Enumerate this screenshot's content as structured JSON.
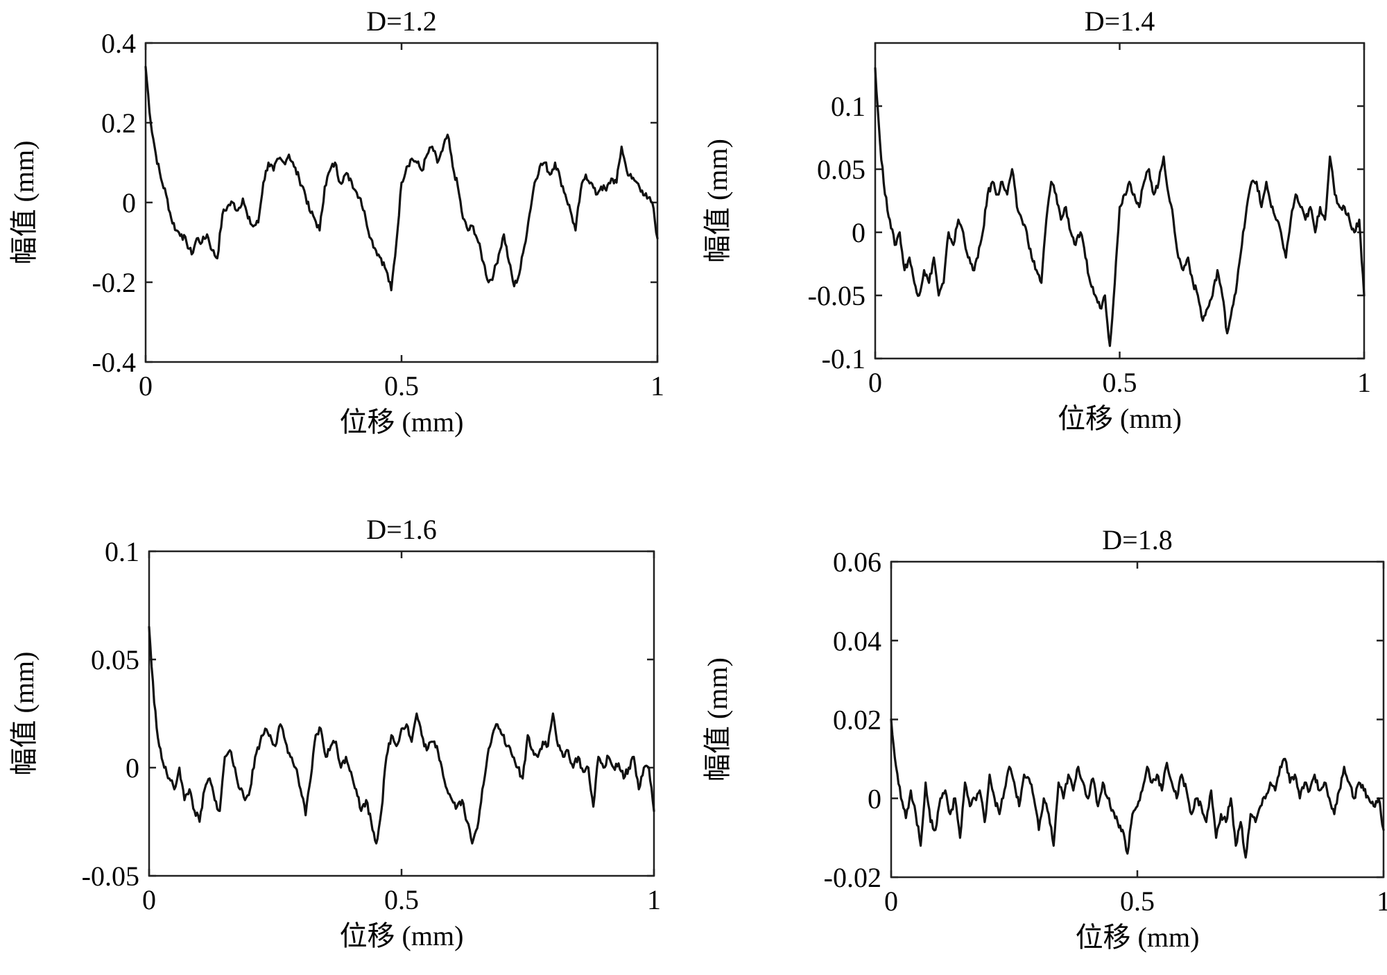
{
  "chart_data": [
    {
      "type": "line",
      "title": "D=1.2",
      "xlabel": "位移 (mm)",
      "ylabel": "幅值 (mm)",
      "xlim": [
        0,
        1
      ],
      "ylim": [
        -0.4,
        0.4
      ],
      "x_ticks": [
        "0",
        "0.5",
        "1"
      ],
      "y_ticks": [
        "0.4",
        "0.2",
        "0",
        "-0.2",
        "-0.4"
      ],
      "grid": false,
      "series": [
        {
          "x": [
            0,
            0.01,
            0.02,
            0.03,
            0.04,
            0.05,
            0.06,
            0.07,
            0.08,
            0.09,
            0.1,
            0.11,
            0.12,
            0.13,
            0.14,
            0.15,
            0.16,
            0.17,
            0.18,
            0.19,
            0.2,
            0.21,
            0.22,
            0.23,
            0.24,
            0.25,
            0.26,
            0.27,
            0.28,
            0.29,
            0.3,
            0.31,
            0.32,
            0.33,
            0.34,
            0.35,
            0.36,
            0.37,
            0.38,
            0.39,
            0.4,
            0.41,
            0.42,
            0.43,
            0.44,
            0.45,
            0.46,
            0.47,
            0.48,
            0.49,
            0.5,
            0.51,
            0.52,
            0.53,
            0.54,
            0.55,
            0.56,
            0.57,
            0.58,
            0.59,
            0.6,
            0.61,
            0.62,
            0.63,
            0.64,
            0.65,
            0.66,
            0.67,
            0.68,
            0.69,
            0.7,
            0.71,
            0.72,
            0.73,
            0.74,
            0.75,
            0.76,
            0.77,
            0.78,
            0.79,
            0.8,
            0.81,
            0.82,
            0.83,
            0.84,
            0.85,
            0.86,
            0.87,
            0.88,
            0.89,
            0.9,
            0.91,
            0.92,
            0.93,
            0.94,
            0.95,
            0.96,
            0.97,
            0.98,
            0.99,
            1.0
          ],
          "values": [
            0.34,
            0.2,
            0.12,
            0.06,
            0.02,
            -0.04,
            -0.07,
            -0.08,
            -0.1,
            -0.13,
            -0.09,
            -0.1,
            -0.08,
            -0.12,
            -0.14,
            -0.03,
            -0.01,
            0.0,
            -0.02,
            0.01,
            -0.04,
            -0.06,
            -0.05,
            0.05,
            0.1,
            0.08,
            0.11,
            0.1,
            0.12,
            0.09,
            0.06,
            0.03,
            -0.02,
            -0.04,
            -0.07,
            0.04,
            0.08,
            0.1,
            0.05,
            0.07,
            0.06,
            0.03,
            0.01,
            -0.04,
            -0.09,
            -0.12,
            -0.14,
            -0.17,
            -0.22,
            -0.1,
            0.05,
            0.09,
            0.11,
            0.1,
            0.08,
            0.12,
            0.14,
            0.1,
            0.13,
            0.17,
            0.09,
            0.04,
            -0.04,
            -0.07,
            -0.06,
            -0.1,
            -0.15,
            -0.2,
            -0.18,
            -0.13,
            -0.08,
            -0.15,
            -0.21,
            -0.18,
            -0.11,
            -0.03,
            0.05,
            0.09,
            0.1,
            0.07,
            0.1,
            0.06,
            0.02,
            -0.02,
            -0.07,
            0.03,
            0.07,
            0.05,
            0.02,
            0.04,
            0.03,
            0.06,
            0.05,
            0.14,
            0.08,
            0.06,
            0.05,
            0.03,
            0.01,
            0.0,
            -0.09
          ]
        }
      ]
    },
    {
      "type": "line",
      "title": "D=1.4",
      "xlabel": "位移 (mm)",
      "ylabel": "幅值 (mm)",
      "xlim": [
        0,
        1
      ],
      "ylim": [
        -0.1,
        0.15
      ],
      "x_ticks": [
        "0",
        "0.5",
        "1"
      ],
      "y_ticks": [
        "0.1",
        "0.05",
        "0",
        "-0.05",
        "-0.1"
      ],
      "y_tick_values": [
        0.1,
        0.05,
        0,
        -0.05,
        -0.1
      ],
      "grid": false,
      "series": [
        {
          "x": [
            0,
            0.01,
            0.02,
            0.03,
            0.04,
            0.05,
            0.06,
            0.07,
            0.08,
            0.09,
            0.1,
            0.11,
            0.12,
            0.13,
            0.14,
            0.15,
            0.16,
            0.17,
            0.18,
            0.19,
            0.2,
            0.21,
            0.22,
            0.23,
            0.24,
            0.25,
            0.26,
            0.27,
            0.28,
            0.29,
            0.3,
            0.31,
            0.32,
            0.33,
            0.34,
            0.35,
            0.36,
            0.37,
            0.38,
            0.39,
            0.4,
            0.41,
            0.42,
            0.43,
            0.44,
            0.45,
            0.46,
            0.47,
            0.48,
            0.49,
            0.5,
            0.51,
            0.52,
            0.53,
            0.54,
            0.55,
            0.56,
            0.57,
            0.58,
            0.59,
            0.6,
            0.61,
            0.62,
            0.63,
            0.64,
            0.65,
            0.66,
            0.67,
            0.68,
            0.69,
            0.7,
            0.71,
            0.72,
            0.73,
            0.74,
            0.75,
            0.76,
            0.77,
            0.78,
            0.79,
            0.8,
            0.81,
            0.82,
            0.83,
            0.84,
            0.85,
            0.86,
            0.87,
            0.88,
            0.89,
            0.9,
            0.91,
            0.92,
            0.93,
            0.94,
            0.95,
            0.96,
            0.97,
            0.98,
            0.99,
            1.0
          ],
          "values": [
            0.13,
            0.07,
            0.03,
            0.01,
            -0.01,
            0.0,
            -0.03,
            -0.02,
            -0.04,
            -0.05,
            -0.03,
            -0.04,
            -0.02,
            -0.05,
            -0.04,
            0.0,
            -0.01,
            0.01,
            0.0,
            -0.02,
            -0.03,
            -0.02,
            0.0,
            0.03,
            0.04,
            0.03,
            0.04,
            0.03,
            0.05,
            0.02,
            0.01,
            0.0,
            -0.02,
            -0.03,
            -0.04,
            0.01,
            0.04,
            0.03,
            0.01,
            0.02,
            0.0,
            -0.01,
            0.0,
            -0.02,
            -0.04,
            -0.05,
            -0.06,
            -0.05,
            -0.09,
            -0.04,
            0.02,
            0.03,
            0.04,
            0.03,
            0.02,
            0.04,
            0.05,
            0.03,
            0.04,
            0.06,
            0.03,
            0.01,
            -0.02,
            -0.03,
            -0.02,
            -0.04,
            -0.05,
            -0.07,
            -0.06,
            -0.05,
            -0.03,
            -0.05,
            -0.08,
            -0.06,
            -0.04,
            -0.01,
            0.02,
            0.04,
            0.04,
            0.02,
            0.04,
            0.02,
            0.01,
            0.0,
            -0.02,
            0.01,
            0.03,
            0.02,
            0.01,
            0.02,
            0.0,
            0.02,
            0.01,
            0.06,
            0.03,
            0.02,
            0.02,
            0.01,
            0.0,
            0.01,
            -0.05
          ]
        }
      ]
    },
    {
      "type": "line",
      "title": "D=1.6",
      "xlabel": "位移 (mm)",
      "ylabel": "幅值 (mm)",
      "xlim": [
        0,
        1
      ],
      "ylim": [
        -0.05,
        0.1
      ],
      "x_ticks": [
        "0",
        "0.5",
        "1"
      ],
      "y_ticks": [
        "0.1",
        "0.05",
        "0",
        "-0.05"
      ],
      "grid": false,
      "series": [
        {
          "x": [
            0,
            0.01,
            0.02,
            0.03,
            0.04,
            0.05,
            0.06,
            0.07,
            0.08,
            0.09,
            0.1,
            0.11,
            0.12,
            0.13,
            0.14,
            0.15,
            0.16,
            0.17,
            0.18,
            0.19,
            0.2,
            0.21,
            0.22,
            0.23,
            0.24,
            0.25,
            0.26,
            0.27,
            0.28,
            0.29,
            0.3,
            0.31,
            0.32,
            0.33,
            0.34,
            0.35,
            0.36,
            0.37,
            0.38,
            0.39,
            0.4,
            0.41,
            0.42,
            0.43,
            0.44,
            0.45,
            0.46,
            0.47,
            0.48,
            0.49,
            0.5,
            0.51,
            0.52,
            0.53,
            0.54,
            0.55,
            0.56,
            0.57,
            0.58,
            0.59,
            0.6,
            0.61,
            0.62,
            0.63,
            0.64,
            0.65,
            0.66,
            0.67,
            0.68,
            0.69,
            0.7,
            0.71,
            0.72,
            0.73,
            0.74,
            0.75,
            0.76,
            0.77,
            0.78,
            0.79,
            0.8,
            0.81,
            0.82,
            0.83,
            0.84,
            0.85,
            0.86,
            0.87,
            0.88,
            0.89,
            0.9,
            0.91,
            0.92,
            0.93,
            0.94,
            0.95,
            0.96,
            0.97,
            0.98,
            0.99,
            1.0
          ],
          "values": [
            0.065,
            0.03,
            0.01,
            0.0,
            -0.005,
            -0.01,
            0.0,
            -0.015,
            -0.01,
            -0.02,
            -0.025,
            -0.01,
            -0.005,
            -0.015,
            -0.02,
            0.005,
            0.008,
            0.0,
            -0.01,
            -0.015,
            -0.01,
            0.005,
            0.012,
            0.018,
            0.015,
            0.01,
            0.02,
            0.012,
            0.005,
            0.0,
            -0.01,
            -0.022,
            -0.005,
            0.015,
            0.018,
            0.005,
            0.01,
            0.012,
            0.0,
            0.005,
            -0.002,
            -0.01,
            -0.02,
            -0.015,
            -0.025,
            -0.035,
            -0.02,
            0.005,
            0.015,
            0.01,
            0.018,
            0.02,
            0.012,
            0.025,
            0.015,
            0.008,
            0.012,
            0.01,
            0.0,
            -0.01,
            -0.015,
            -0.018,
            -0.015,
            -0.025,
            -0.035,
            -0.028,
            -0.01,
            0.005,
            0.015,
            0.02,
            0.015,
            0.01,
            0.005,
            0.0,
            -0.005,
            0.015,
            0.008,
            0.005,
            0.012,
            0.01,
            0.025,
            0.01,
            0.005,
            0.008,
            0.0,
            0.005,
            -0.002,
            0.0,
            -0.018,
            0.005,
            0.0,
            0.005,
            0.0,
            0.002,
            -0.005,
            0.0,
            0.005,
            -0.01,
            0.0,
            0.0,
            -0.02
          ]
        }
      ]
    },
    {
      "type": "line",
      "title": "D=1.8",
      "xlabel": "位移 (mm)",
      "ylabel": "幅值 (mm)",
      "xlim": [
        0,
        1
      ],
      "ylim": [
        -0.02,
        0.06
      ],
      "x_ticks": [
        "0",
        "0.5",
        "1"
      ],
      "y_ticks": [
        "0.06",
        "0.04",
        "0.02",
        "0",
        "-0.02"
      ],
      "grid": false,
      "series": [
        {
          "x": [
            0,
            0.01,
            0.02,
            0.03,
            0.04,
            0.05,
            0.06,
            0.07,
            0.08,
            0.09,
            0.1,
            0.11,
            0.12,
            0.13,
            0.14,
            0.15,
            0.16,
            0.17,
            0.18,
            0.19,
            0.2,
            0.21,
            0.22,
            0.23,
            0.24,
            0.25,
            0.26,
            0.27,
            0.28,
            0.29,
            0.3,
            0.31,
            0.32,
            0.33,
            0.34,
            0.35,
            0.36,
            0.37,
            0.38,
            0.39,
            0.4,
            0.41,
            0.42,
            0.43,
            0.44,
            0.45,
            0.46,
            0.47,
            0.48,
            0.49,
            0.5,
            0.51,
            0.52,
            0.53,
            0.54,
            0.55,
            0.56,
            0.57,
            0.58,
            0.59,
            0.6,
            0.61,
            0.62,
            0.63,
            0.64,
            0.65,
            0.66,
            0.67,
            0.68,
            0.69,
            0.7,
            0.71,
            0.72,
            0.73,
            0.74,
            0.75,
            0.76,
            0.77,
            0.78,
            0.79,
            0.8,
            0.81,
            0.82,
            0.83,
            0.84,
            0.85,
            0.86,
            0.87,
            0.88,
            0.89,
            0.9,
            0.91,
            0.92,
            0.93,
            0.94,
            0.95,
            0.96,
            0.97,
            0.98,
            0.99,
            1.0
          ],
          "values": [
            0.02,
            0.008,
            0.0,
            -0.005,
            0.002,
            -0.004,
            -0.012,
            0.004,
            -0.006,
            -0.008,
            0.0,
            0.002,
            -0.004,
            0.0,
            -0.01,
            0.004,
            -0.002,
            0.0,
            0.002,
            -0.006,
            0.006,
            0.0,
            -0.004,
            0.002,
            0.008,
            0.004,
            -0.002,
            0.006,
            0.005,
            0.0,
            -0.008,
            0.0,
            -0.004,
            -0.012,
            0.004,
            0.0,
            0.006,
            0.002,
            0.008,
            0.004,
            0.0,
            0.005,
            -0.002,
            0.004,
            0.0,
            -0.003,
            -0.006,
            -0.008,
            -0.014,
            -0.004,
            -0.002,
            0.002,
            0.008,
            0.004,
            0.006,
            0.002,
            0.009,
            0.004,
            0.0,
            0.006,
            0.002,
            -0.004,
            0.0,
            -0.002,
            -0.006,
            0.002,
            -0.01,
            -0.004,
            -0.006,
            0.0,
            -0.012,
            -0.006,
            -0.015,
            -0.004,
            -0.006,
            -0.002,
            0.0,
            0.004,
            0.002,
            0.008,
            0.01,
            0.004,
            0.006,
            0.0,
            0.004,
            0.002,
            0.006,
            0.002,
            0.004,
            0.0,
            -0.004,
            0.002,
            0.008,
            0.004,
            0.0,
            0.004,
            0.002,
            0.0,
            -0.002,
            0.0,
            -0.008
          ]
        }
      ]
    }
  ]
}
